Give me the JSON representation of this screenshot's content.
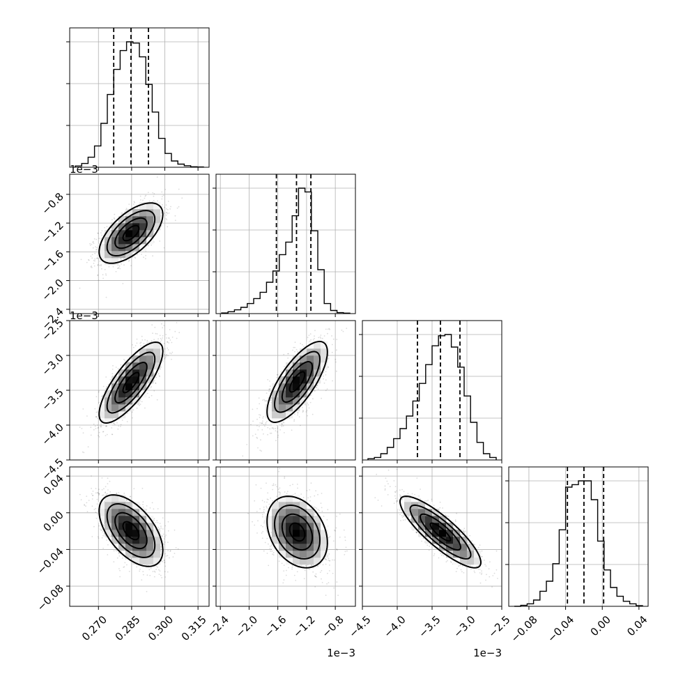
{
  "chart_data": {
    "type": "corner",
    "title": "",
    "quantile_lines": true,
    "grid": true,
    "parameters": [
      {
        "range": [
          0.257,
          0.32
        ],
        "ticks": [
          0.27,
          0.285,
          0.3,
          0.315
        ],
        "tick_labels": [
          "0.270",
          "0.285",
          "0.300",
          "0.315"
        ],
        "offset_text": "",
        "quantiles": [
          0.2769,
          0.2847,
          0.2926
        ],
        "hist": [
          0.01,
          0.03,
          0.08,
          0.17,
          0.35,
          0.58,
          0.78,
          0.93,
          1.0,
          0.99,
          0.88,
          0.66,
          0.44,
          0.23,
          0.11,
          0.05,
          0.025,
          0.012,
          0.004,
          0.002
        ]
      },
      {
        "range": [
          -2.46,
          -0.52
        ],
        "ticks": [
          -2.4,
          -2.0,
          -1.6,
          -1.2,
          -0.8
        ],
        "tick_labels": [
          "−2.4",
          "−2.0",
          "−1.6",
          "−1.2",
          "−0.8"
        ],
        "offset_text": "1e−3",
        "quantiles": [
          -1.62,
          -1.34,
          -1.14
        ],
        "hist": [
          0.005,
          0.015,
          0.03,
          0.05,
          0.08,
          0.12,
          0.17,
          0.25,
          0.34,
          0.47,
          0.57,
          0.78,
          1.0,
          0.97,
          0.66,
          0.35,
          0.08,
          0.025,
          0.008,
          0.004
        ]
      },
      {
        "range": [
          -4.5,
          -2.5
        ],
        "ticks": [
          -4.5,
          -4.0,
          -3.5,
          -3.0,
          -2.5
        ],
        "tick_labels": [
          "−4.5",
          "−4.0",
          "−3.5",
          "−3.0",
          "−2.5"
        ],
        "offset_text": "1e−3",
        "quantiles": [
          -3.71,
          -3.38,
          -3.1
        ],
        "hist": [
          0.01,
          0.02,
          0.05,
          0.1,
          0.17,
          0.25,
          0.35,
          0.47,
          0.61,
          0.76,
          0.91,
          0.99,
          1.0,
          0.9,
          0.74,
          0.51,
          0.3,
          0.14,
          0.05,
          0.02
        ]
      },
      {
        "range": [
          -0.102,
          0.05
        ],
        "ticks": [
          -0.08,
          -0.04,
          0.0,
          0.04
        ],
        "tick_labels": [
          "−0.08",
          "−0.04",
          "0.00",
          "0.04"
        ],
        "offset_text": "",
        "quantiles": [
          -0.038,
          -0.02,
          0.0015
        ],
        "hist": [
          0.0,
          0.008,
          0.02,
          0.05,
          0.12,
          0.2,
          0.34,
          0.61,
          0.95,
          0.97,
          1.0,
          1.0,
          0.85,
          0.52,
          0.29,
          0.15,
          0.08,
          0.04,
          0.02,
          0.005
        ]
      }
    ],
    "pairs": [
      {
        "row": 1,
        "col": 0,
        "mean": [
          0.2847,
          -0.00134
        ],
        "sd": [
          0.0072,
          0.00021
        ],
        "rho": 0.62,
        "contour_levels_sigma": [
          0.5,
          1.0,
          1.5,
          2.0
        ]
      },
      {
        "row": 2,
        "col": 0,
        "mean": [
          0.2847,
          -0.00339
        ],
        "sd": [
          0.0072,
          0.00029
        ],
        "rho": 0.78,
        "contour_levels_sigma": [
          0.5,
          1.0,
          1.5,
          2.0
        ]
      },
      {
        "row": 2,
        "col": 1,
        "mean": [
          -0.00133,
          -0.00338
        ],
        "sd": [
          0.00021,
          0.00029
        ],
        "rho": 0.74,
        "contour_levels_sigma": [
          0.5,
          1.0,
          1.5,
          2.0
        ]
      },
      {
        "row": 3,
        "col": 0,
        "mean": [
          0.2847,
          -0.0195
        ],
        "sd": [
          0.0072,
          0.0195
        ],
        "rho": -0.55,
        "contour_levels_sigma": [
          0.5,
          1.0,
          1.5,
          2.0
        ]
      },
      {
        "row": 3,
        "col": 1,
        "mean": [
          -0.00133,
          -0.021
        ],
        "sd": [
          0.00021,
          0.0195
        ],
        "rho": -0.3,
        "contour_levels_sigma": [
          0.5,
          1.0,
          1.5,
          2.0
        ]
      },
      {
        "row": 3,
        "col": 2,
        "mean": [
          -0.00338,
          -0.021
        ],
        "sd": [
          0.00029,
          0.0195
        ],
        "rho": -0.85,
        "contour_levels_sigma": [
          0.5,
          1.0,
          1.5,
          2.0
        ]
      }
    ]
  }
}
